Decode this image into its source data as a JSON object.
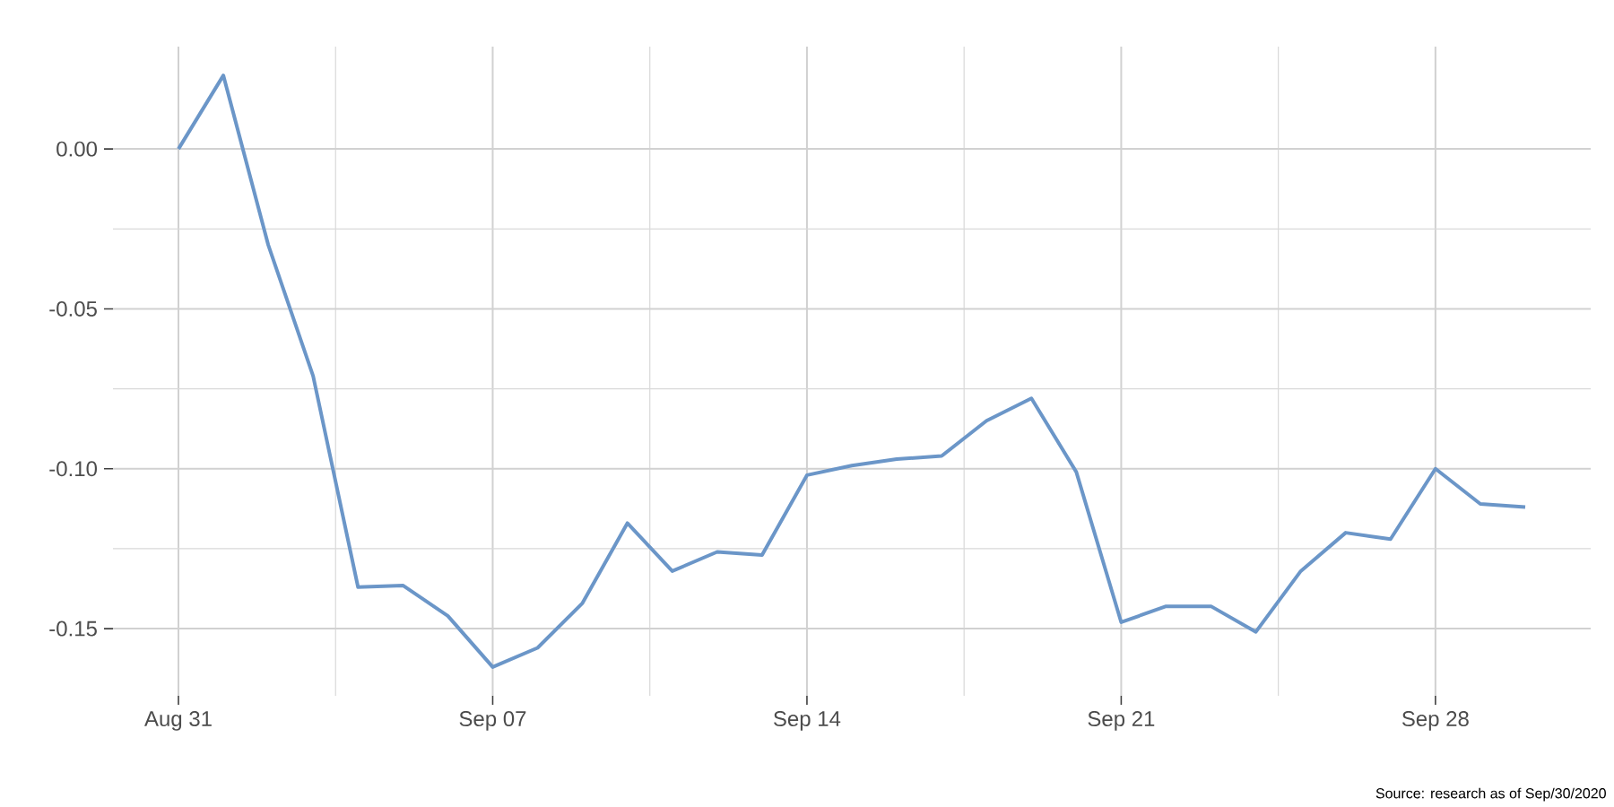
{
  "chart_data": {
    "type": "line",
    "x": [
      "2020-08-31",
      "2020-09-01",
      "2020-09-02",
      "2020-09-03",
      "2020-09-04",
      "2020-09-05",
      "2020-09-06",
      "2020-09-07",
      "2020-09-08",
      "2020-09-09",
      "2020-09-10",
      "2020-09-11",
      "2020-09-12",
      "2020-09-13",
      "2020-09-14",
      "2020-09-15",
      "2020-09-16",
      "2020-09-17",
      "2020-09-18",
      "2020-09-19",
      "2020-09-20",
      "2020-09-21",
      "2020-09-22",
      "2020-09-23",
      "2020-09-24",
      "2020-09-25",
      "2020-09-26",
      "2020-09-27",
      "2020-09-28",
      "2020-09-29",
      "2020-09-30"
    ],
    "values": [
      0.0,
      0.023,
      -0.03,
      -0.071,
      -0.137,
      -0.1365,
      -0.146,
      -0.162,
      -0.156,
      -0.142,
      -0.117,
      -0.132,
      -0.126,
      -0.127,
      -0.102,
      -0.099,
      -0.097,
      -0.096,
      -0.085,
      -0.078,
      -0.101,
      -0.148,
      -0.143,
      -0.143,
      -0.151,
      -0.132,
      -0.12,
      -0.122,
      -0.1,
      -0.111,
      -0.112
    ],
    "color": "#6b96c8",
    "line_style": "solid",
    "xlim": [
      "2020-08-29T13:00",
      "2020-10-01T11:00"
    ],
    "xticks": [
      {
        "value": "2020-08-31",
        "label": "Aug 31"
      },
      {
        "value": "2020-09-07",
        "label": "Sep 07"
      },
      {
        "value": "2020-09-14",
        "label": "Sep 14"
      },
      {
        "value": "2020-09-21",
        "label": "Sep 21"
      },
      {
        "value": "2020-09-28",
        "label": "Sep 28"
      }
    ],
    "ylim": [
      -0.171,
      0.032
    ],
    "yticks": [
      {
        "value": -0.15,
        "label": "-0.15"
      },
      {
        "value": -0.1,
        "label": "-0.10"
      },
      {
        "value": -0.05,
        "label": "-0.05"
      },
      {
        "value": 0,
        "label": "0.00"
      }
    ],
    "grid": true,
    "annotations": [
      "Source: research as of Sep/30/2020"
    ]
  }
}
